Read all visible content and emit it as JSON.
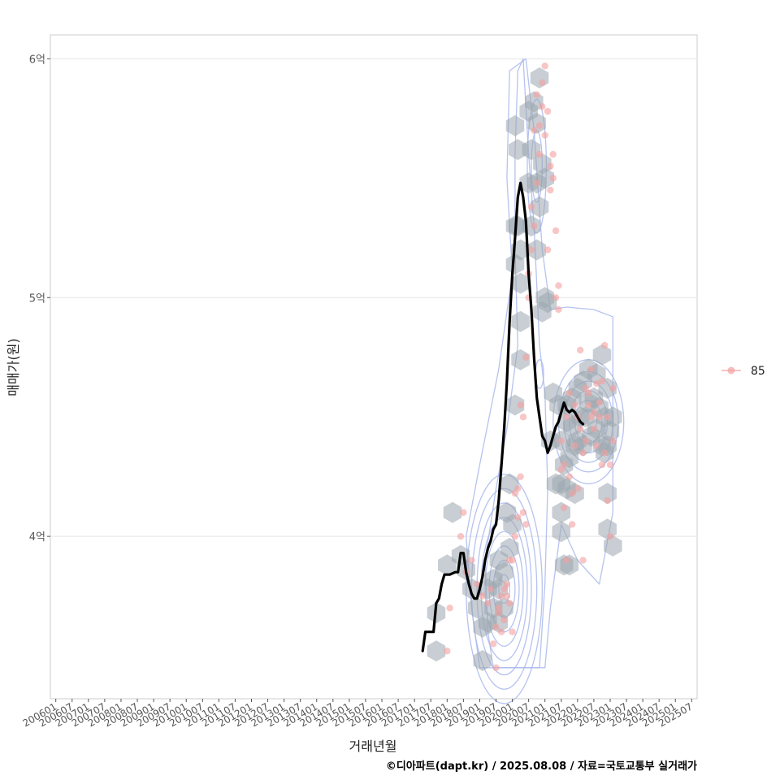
{
  "chart_data": {
    "type": "scatter",
    "title": "",
    "xlabel": "거래년월",
    "ylabel": "매매가(원)",
    "caption": "©디아파트(dapt.kr) / 2025.08.08 / 자료=국토교통부 실거래가",
    "x_unit": "month_index_from_2006-01",
    "xlim": [
      -2,
      236
    ],
    "ylim": [
      3.32,
      6.1
    ],
    "y_ticks": [
      {
        "value": 4,
        "label": "4억"
      },
      {
        "value": 5,
        "label": "5억"
      },
      {
        "value": 6,
        "label": "6억"
      }
    ],
    "x_ticks": [
      "200601",
      "200607",
      "200701",
      "200707",
      "200801",
      "200807",
      "200901",
      "200907",
      "201001",
      "201007",
      "201101",
      "201107",
      "201201",
      "201207",
      "201301",
      "201307",
      "201401",
      "201407",
      "201501",
      "201507",
      "201601",
      "201607",
      "201701",
      "201707",
      "201801",
      "201807",
      "201901",
      "201907",
      "202001",
      "202007",
      "202101",
      "202107",
      "202201",
      "202207",
      "202301",
      "202307",
      "202401",
      "202407",
      "202501",
      "202507"
    ],
    "legend": [
      {
        "label": "85",
        "color": "#F4A0A0",
        "position": "right"
      }
    ],
    "colors": {
      "points": "#F4A0A0",
      "hex": "#9AA5AE",
      "contour": "#A9B9EC",
      "trend": "#000000",
      "grid": "#E5E5E5",
      "frame": "#CCCCCC"
    },
    "series": [
      {
        "name": "85",
        "kind": "points",
        "points": [
          [
            144,
            3.52
          ],
          [
            145,
            3.7
          ],
          [
            150,
            4.1
          ],
          [
            149,
            4.0
          ],
          [
            151,
            3.85
          ],
          [
            153,
            3.9
          ],
          [
            155,
            3.8
          ],
          [
            157,
            3.75
          ],
          [
            159,
            3.72
          ],
          [
            160,
            3.78
          ],
          [
            161,
            3.55
          ],
          [
            162,
            3.62
          ],
          [
            162,
            3.45
          ],
          [
            163,
            3.68
          ],
          [
            163,
            3.7
          ],
          [
            164,
            3.75
          ],
          [
            164,
            3.6
          ],
          [
            165,
            3.78
          ],
          [
            165,
            3.65
          ],
          [
            166,
            3.8
          ],
          [
            166,
            3.75
          ],
          [
            167,
            3.9
          ],
          [
            167,
            3.72
          ],
          [
            168,
            3.6
          ],
          [
            168,
            3.9
          ],
          [
            169,
            4.0
          ],
          [
            169,
            4.18
          ],
          [
            170,
            4.2
          ],
          [
            170,
            4.08
          ],
          [
            171,
            4.25
          ],
          [
            171,
            4.55
          ],
          [
            172,
            4.1
          ],
          [
            172,
            4.5
          ],
          [
            173,
            4.05
          ],
          [
            173,
            4.75
          ],
          [
            174,
            5.0
          ],
          [
            174,
            5.1
          ],
          [
            175,
            5.2
          ],
          [
            175,
            5.38
          ],
          [
            176,
            5.3
          ],
          [
            176,
            5.7
          ],
          [
            177,
            5.48
          ],
          [
            177,
            5.85
          ],
          [
            178,
            5.6
          ],
          [
            178,
            5.72
          ],
          [
            179,
            5.8
          ],
          [
            179,
            5.9
          ],
          [
            180,
            5.68
          ],
          [
            180,
            5.97
          ],
          [
            181,
            5.78
          ],
          [
            181,
            5.2
          ],
          [
            182,
            5.45
          ],
          [
            182,
            5.55
          ],
          [
            183,
            5.5
          ],
          [
            183,
            5.6
          ],
          [
            184,
            5.0
          ],
          [
            184,
            5.28
          ],
          [
            185,
            4.95
          ],
          [
            185,
            5.05
          ],
          [
            186,
            4.28
          ],
          [
            186,
            4.4
          ],
          [
            187,
            4.3
          ],
          [
            187,
            4.12
          ],
          [
            188,
            3.9
          ],
          [
            188,
            4.5
          ],
          [
            189,
            4.25
          ],
          [
            189,
            4.6
          ],
          [
            190,
            4.05
          ],
          [
            190,
            4.18
          ],
          [
            191,
            4.38
          ],
          [
            191,
            4.55
          ],
          [
            192,
            4.2
          ],
          [
            192,
            4.5
          ],
          [
            193,
            4.45
          ],
          [
            193,
            4.78
          ],
          [
            194,
            3.9
          ],
          [
            194,
            4.35
          ],
          [
            195,
            4.62
          ],
          [
            195,
            4.4
          ],
          [
            196,
            4.55
          ],
          [
            196,
            4.6
          ],
          [
            197,
            4.5
          ],
          [
            197,
            4.7
          ],
          [
            198,
            4.45
          ],
          [
            198,
            4.52
          ],
          [
            199,
            4.64
          ],
          [
            199,
            4.38
          ],
          [
            200,
            4.5
          ],
          [
            200,
            4.56
          ],
          [
            201,
            4.3
          ],
          [
            201,
            4.65
          ],
          [
            202,
            4.35
          ],
          [
            202,
            4.8
          ],
          [
            203,
            4.15
          ],
          [
            203,
            4.5
          ],
          [
            204,
            4.0
          ],
          [
            204,
            4.3
          ],
          [
            205,
            4.4
          ],
          [
            205,
            4.62
          ]
        ]
      },
      {
        "name": "moving-average",
        "kind": "line",
        "points": [
          [
            135,
            3.52
          ],
          [
            136,
            3.6
          ],
          [
            139,
            3.6
          ],
          [
            140,
            3.72
          ],
          [
            141,
            3.74
          ],
          [
            142,
            3.8
          ],
          [
            143,
            3.84
          ],
          [
            145,
            3.84
          ],
          [
            147,
            3.85
          ],
          [
            148,
            3.85
          ],
          [
            149,
            3.93
          ],
          [
            150,
            3.93
          ],
          [
            151,
            3.85
          ],
          [
            152,
            3.8
          ],
          [
            153,
            3.76
          ],
          [
            154,
            3.74
          ],
          [
            155,
            3.74
          ],
          [
            156,
            3.78
          ],
          [
            157,
            3.83
          ],
          [
            158,
            3.9
          ],
          [
            159,
            3.95
          ],
          [
            160,
            3.98
          ],
          [
            161,
            4.03
          ],
          [
            162,
            4.05
          ],
          [
            163,
            4.15
          ],
          [
            164,
            4.3
          ],
          [
            165,
            4.45
          ],
          [
            166,
            4.65
          ],
          [
            167,
            4.9
          ],
          [
            168,
            5.1
          ],
          [
            169,
            5.25
          ],
          [
            170,
            5.42
          ],
          [
            171,
            5.48
          ],
          [
            172,
            5.42
          ],
          [
            173,
            5.32
          ],
          [
            174,
            5.1
          ],
          [
            175,
            4.95
          ],
          [
            176,
            4.75
          ],
          [
            177,
            4.58
          ],
          [
            178,
            4.5
          ],
          [
            179,
            4.42
          ],
          [
            180,
            4.4
          ],
          [
            181,
            4.35
          ],
          [
            182,
            4.38
          ],
          [
            183,
            4.42
          ],
          [
            184,
            4.46
          ],
          [
            185,
            4.48
          ],
          [
            186,
            4.52
          ],
          [
            187,
            4.56
          ],
          [
            188,
            4.53
          ],
          [
            189,
            4.52
          ],
          [
            190,
            4.53
          ],
          [
            191,
            4.52
          ],
          [
            192,
            4.5
          ],
          [
            193,
            4.48
          ],
          [
            194,
            4.47
          ]
        ]
      }
    ],
    "hexbins": [
      [
        140,
        3.68
      ],
      [
        140,
        3.52
      ],
      [
        146,
        4.1
      ],
      [
        144,
        3.88
      ],
      [
        149,
        3.92
      ],
      [
        151,
        3.86
      ],
      [
        153,
        3.78
      ],
      [
        155,
        3.7
      ],
      [
        157,
        3.62
      ],
      [
        157,
        3.48
      ],
      [
        159,
        3.64
      ],
      [
        161,
        3.7
      ],
      [
        159,
        3.78
      ],
      [
        161,
        3.82
      ],
      [
        163,
        3.9
      ],
      [
        163,
        3.78
      ],
      [
        165,
        3.85
      ],
      [
        165,
        3.7
      ],
      [
        163,
        3.64
      ],
      [
        167,
        3.95
      ],
      [
        166,
        4.1
      ],
      [
        167,
        4.22
      ],
      [
        168,
        4.05
      ],
      [
        169,
        4.55
      ],
      [
        171,
        4.74
      ],
      [
        169,
        5.3
      ],
      [
        169,
        5.14
      ],
      [
        171,
        5.06
      ],
      [
        171,
        4.9
      ],
      [
        170,
        5.62
      ],
      [
        169,
        5.72
      ],
      [
        174,
        5.48
      ],
      [
        177,
        5.48
      ],
      [
        175,
        5.62
      ],
      [
        174,
        5.78
      ],
      [
        176,
        5.82
      ],
      [
        178,
        5.92
      ],
      [
        177,
        5.73
      ],
      [
        179,
        5.56
      ],
      [
        180,
        5.5
      ],
      [
        178,
        5.38
      ],
      [
        177,
        5.2
      ],
      [
        175,
        5.3
      ],
      [
        170,
        5.3
      ],
      [
        171,
        5.2
      ],
      [
        180,
        5.0
      ],
      [
        179,
        4.94
      ],
      [
        181,
        4.98
      ],
      [
        182,
        4.4
      ],
      [
        183,
        4.6
      ],
      [
        185,
        4.55
      ],
      [
        184,
        4.22
      ],
      [
        186,
        4.1
      ],
      [
        187,
        3.88
      ],
      [
        189,
        3.88
      ],
      [
        188,
        4.55
      ],
      [
        190,
        4.58
      ],
      [
        192,
        4.62
      ],
      [
        194,
        4.65
      ],
      [
        196,
        4.7
      ],
      [
        199,
        4.68
      ],
      [
        201,
        4.76
      ],
      [
        203,
        4.62
      ],
      [
        205,
        4.5
      ],
      [
        203,
        4.38
      ],
      [
        201,
        4.38
      ],
      [
        199,
        4.45
      ],
      [
        197,
        4.42
      ],
      [
        195,
        4.5
      ],
      [
        193,
        4.5
      ],
      [
        191,
        4.38
      ],
      [
        189,
        4.33
      ],
      [
        187,
        4.3
      ],
      [
        186,
        4.4
      ],
      [
        188,
        4.48
      ],
      [
        190,
        4.46
      ],
      [
        192,
        4.4
      ],
      [
        194,
        4.38
      ],
      [
        196,
        4.56
      ],
      [
        198,
        4.58
      ],
      [
        200,
        4.54
      ],
      [
        202,
        4.5
      ],
      [
        204,
        4.44
      ],
      [
        188,
        4.2
      ],
      [
        191,
        4.18
      ],
      [
        202,
        4.35
      ],
      [
        203,
        4.18
      ],
      [
        203,
        4.03
      ],
      [
        205,
        3.96
      ],
      [
        186,
        4.22
      ],
      [
        186,
        4.02
      ]
    ],
    "contours": [
      {
        "cx": 165,
        "cy": 3.78,
        "rx": [
          2,
          4,
          5.5,
          7,
          8.5,
          10,
          12,
          14
        ],
        "ry": [
          0.06,
          0.12,
          0.18,
          0.24,
          0.3,
          0.36,
          0.42,
          0.48
        ]
      },
      {
        "cx": 196,
        "cy": 4.48,
        "rx": [
          3,
          5,
          7,
          9,
          11,
          13
        ],
        "ry": [
          0.05,
          0.09,
          0.13,
          0.17,
          0.21,
          0.26
        ]
      },
      {
        "cx": 177,
        "cy": 5.55,
        "rx": [
          2,
          3.5
        ],
        "ry": [
          0.15,
          0.28
        ]
      },
      {
        "cx": 178,
        "cy": 4.68,
        "rx": [
          1.5
        ],
        "ry": [
          0.06
        ]
      }
    ],
    "contour_outer": [
      [
        [
          161,
          3.45
        ],
        [
          159,
          3.6
        ],
        [
          158,
          3.9
        ],
        [
          162,
          4.2
        ],
        [
          166,
          4.45
        ],
        [
          170,
          4.8
        ],
        [
          169,
          5.2
        ],
        [
          169,
          5.6
        ],
        [
          170,
          5.95
        ],
        [
          172,
          6.0
        ],
        [
          174,
          5.6
        ],
        [
          176,
          5.3
        ],
        [
          177,
          5.05
        ],
        [
          178,
          4.8
        ],
        [
          180,
          4.6
        ],
        [
          181,
          4.2
        ],
        [
          180,
          3.8
        ],
        [
          178,
          3.45
        ]
      ],
      [
        [
          156,
          3.45
        ],
        [
          153,
          3.7
        ],
        [
          151,
          4.0
        ],
        [
          156,
          4.3
        ],
        [
          163,
          4.7
        ],
        [
          168,
          5.1
        ],
        [
          166,
          5.5
        ],
        [
          167,
          5.95
        ],
        [
          173,
          6.0
        ],
        [
          176,
          5.7
        ],
        [
          179,
          5.2
        ],
        [
          182,
          4.95
        ],
        [
          188,
          4.96
        ],
        [
          198,
          4.95
        ],
        [
          205,
          4.92
        ],
        [
          205,
          4.1
        ],
        [
          200,
          3.8
        ],
        [
          192,
          3.9
        ],
        [
          186,
          4.05
        ],
        [
          182,
          3.7
        ],
        [
          180,
          3.45
        ]
      ]
    ]
  }
}
